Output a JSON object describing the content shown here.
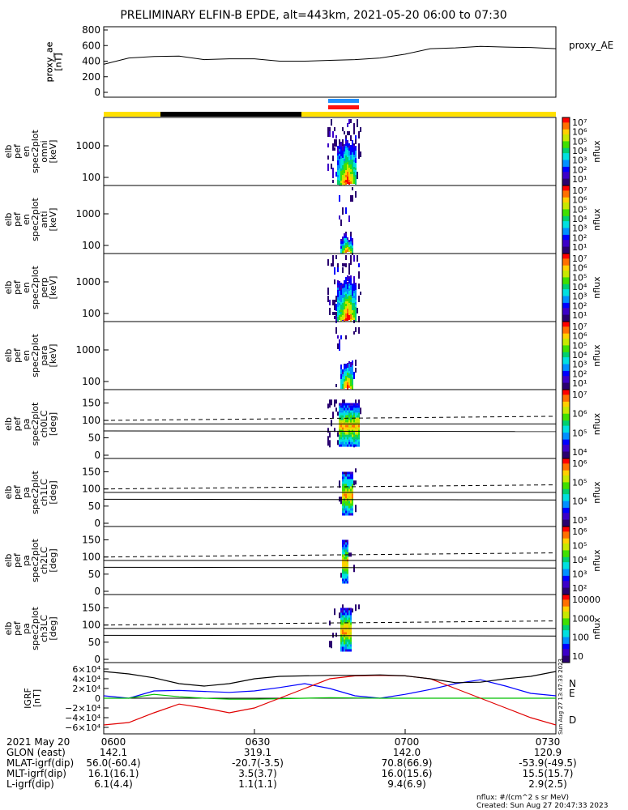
{
  "title": "PRELIMINARY ELFIN-B EPDE, alt=443km, 2021-05-20 06:00 to 07:30",
  "colors": {
    "spec_palette": [
      "#2a0070",
      "#3c00c8",
      "#0000ff",
      "#0090ff",
      "#00e0e0",
      "#00d070",
      "#40e000",
      "#c8e800",
      "#ffd000",
      "#ff7000",
      "#ff0000"
    ],
    "bar_yellow": "#ffe000",
    "bar_black": "#000000",
    "mark_blue": "#2090ff",
    "mark_red": "#ff1010",
    "bx": "#0000ff",
    "by": "#00c000",
    "bz": "#e00000"
  },
  "chart_data": [
    {
      "type": "line",
      "panel": "proxy_AE",
      "ylabel": "proxy_ae [nT]",
      "legend": "proxy_AE",
      "ylim": [
        0,
        800
      ],
      "yticks": [
        "800",
        "600",
        "400",
        "200",
        "0"
      ],
      "x_min": [
        0,
        5,
        10,
        15,
        20,
        25,
        30,
        35,
        40,
        45,
        50,
        55,
        60,
        65,
        70,
        75,
        80,
        85,
        90
      ],
      "values": [
        360,
        440,
        460,
        465,
        420,
        430,
        430,
        400,
        400,
        410,
        420,
        440,
        490,
        560,
        570,
        590,
        580,
        575,
        560
      ]
    },
    {
      "type": "heatmap",
      "panel": "omni",
      "ylabel": [
        "elb",
        "pef",
        "en",
        "spec2plot",
        "omni",
        "[keV]"
      ],
      "yticks": [
        "1000",
        "100"
      ],
      "colorbar": {
        "label": "nflux",
        "ticks": [
          "10⁷",
          "10⁶",
          "10⁵",
          "10⁴",
          "10³",
          "10²",
          "10¹"
        ]
      }
    },
    {
      "type": "heatmap",
      "panel": "anti",
      "ylabel": [
        "elb",
        "pef",
        "en",
        "spec2plot",
        "anti",
        "[keV]"
      ],
      "yticks": [
        "1000",
        "100"
      ],
      "colorbar": {
        "label": "nflux",
        "ticks": [
          "10⁷",
          "10⁶",
          "10⁵",
          "10⁴",
          "10³",
          "10²",
          "10¹"
        ]
      }
    },
    {
      "type": "heatmap",
      "panel": "perp",
      "ylabel": [
        "elb",
        "pef",
        "en",
        "spec2plot",
        "perp",
        "[keV]"
      ],
      "yticks": [
        "1000",
        "100"
      ],
      "colorbar": {
        "label": "nflux",
        "ticks": [
          "10⁷",
          "10⁶",
          "10⁵",
          "10⁴",
          "10³",
          "10²",
          "10¹"
        ]
      }
    },
    {
      "type": "heatmap",
      "panel": "para",
      "ylabel": [
        "elb",
        "pef",
        "en",
        "spec2plot",
        "para",
        "[keV]"
      ],
      "yticks": [
        "1000",
        "100"
      ],
      "colorbar": {
        "label": "nflux",
        "ticks": [
          "10⁷",
          "10⁶",
          "10⁵",
          "10⁴",
          "10³",
          "10²",
          "10¹"
        ]
      }
    },
    {
      "type": "heatmap",
      "panel": "ch0LC",
      "ylabel": [
        "elb",
        "pef",
        "pa",
        "spec2plot",
        "ch0LC",
        "[deg]"
      ],
      "yticks": [
        "150",
        "100",
        "50",
        "0"
      ],
      "colorbar": {
        "label": "nflux",
        "ticks": [
          "10⁷",
          "10⁶",
          "10⁵",
          "10⁴"
        ]
      }
    },
    {
      "type": "heatmap",
      "panel": "ch1LC",
      "ylabel": [
        "elb",
        "pef",
        "pa",
        "spec2plot",
        "ch1LC",
        "[deg]"
      ],
      "yticks": [
        "150",
        "100",
        "50",
        "0"
      ],
      "colorbar": {
        "label": "nflux",
        "ticks": [
          "10⁶",
          "10⁵",
          "10⁴",
          "10³"
        ]
      }
    },
    {
      "type": "heatmap",
      "panel": "ch2LC",
      "ylabel": [
        "elb",
        "pef",
        "pa",
        "spec2plot",
        "ch2LC",
        "[deg]"
      ],
      "yticks": [
        "150",
        "100",
        "50",
        "0"
      ],
      "colorbar": {
        "label": "nflux",
        "ticks": [
          "10⁶",
          "10⁵",
          "10⁴",
          "10³",
          "10²"
        ]
      }
    },
    {
      "type": "heatmap",
      "panel": "ch3LC",
      "ylabel": [
        "elb",
        "pef",
        "pa",
        "spec2plot",
        "ch3LC",
        "[deg]"
      ],
      "yticks": [
        "150",
        "100",
        "50",
        "0"
      ],
      "colorbar": {
        "label": "nflux",
        "ticks": [
          "10000",
          "1000",
          "100",
          "10"
        ]
      }
    },
    {
      "type": "line",
      "panel": "IGRF",
      "ylabel": [
        "IGRF",
        "[nT]"
      ],
      "yticks": [
        "6×10⁴",
        "4×10⁴",
        "2×10⁴",
        "0",
        "−2×10⁴",
        "−4×10⁴",
        "−6×10⁴"
      ],
      "ylim": [
        -60000,
        60000
      ],
      "x_min": [
        0,
        5,
        10,
        15,
        20,
        25,
        30,
        35,
        40,
        45,
        50,
        55,
        60,
        65,
        70,
        75,
        80,
        85,
        90
      ],
      "series": [
        {
          "name": "N",
          "values": [
            5000,
            0,
            15000,
            16000,
            14000,
            12000,
            15000,
            22000,
            30000,
            20000,
            5000,
            0,
            8000,
            18000,
            30000,
            38000,
            25000,
            10000,
            5000
          ]
        },
        {
          "name": "E",
          "values": [
            0,
            0,
            8000,
            3000,
            0,
            -2000,
            -2000,
            -1000,
            0,
            1000,
            500,
            0,
            0,
            0,
            0,
            0,
            0,
            0,
            0
          ]
        },
        {
          "name": "D",
          "values": [
            -55000,
            -50000,
            -30000,
            -12000,
            -20000,
            -30000,
            -20000,
            0,
            20000,
            40000,
            46000,
            47000,
            46000,
            40000,
            20000,
            0,
            -20000,
            -40000,
            -55000
          ]
        },
        {
          "name": "",
          "values": [
            55000,
            50000,
            42000,
            30000,
            25000,
            30000,
            40000,
            45000,
            46000,
            47000,
            47000,
            48000,
            46000,
            40000,
            32000,
            33000,
            40000,
            45000,
            55000
          ]
        }
      ],
      "side_text": "Sun Aug 27 13:47:33 2023"
    }
  ],
  "orbit_table": {
    "rows": [
      [
        "2021 May 20",
        "0600",
        "0630",
        "0700",
        "0730"
      ],
      [
        "GLON (east)",
        "142.1",
        "319.1",
        "142.0",
        "120.9"
      ],
      [
        "MLAT-igrf(dip)",
        "56.0(-60.4)",
        "-20.7(-3.5)",
        "70.8(66.9)",
        "-53.9(-49.5)"
      ],
      [
        "MLT-igrf(dip)",
        "16.1(16.1)",
        "3.5(3.7)",
        "16.0(15.6)",
        "15.5(15.7)"
      ],
      [
        "L-igrf(dip)",
        "6.1(4.4)",
        "1.1(1.1)",
        "9.4(6.9)",
        "2.9(2.5)"
      ]
    ]
  },
  "footer": {
    "units": "nflux: #/(cm^2 s sr MeV)",
    "created": "Created: Sun Aug 27 20:47:33 2023"
  }
}
